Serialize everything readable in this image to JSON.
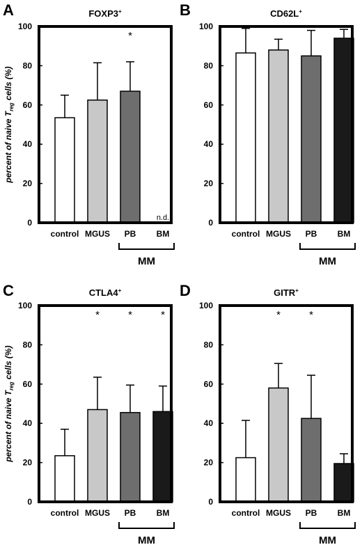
{
  "y_axis_label": "percent of naive T",
  "y_axis_label_sub": "reg",
  "y_axis_label_end": " cells (%)",
  "group_label": "MM",
  "chart_data": [
    {
      "panel": "A",
      "title": "FOXP3",
      "title_sup": "+",
      "type": "bar",
      "categories": [
        "control",
        "MGUS",
        "PB",
        "BM"
      ],
      "values": [
        53.5,
        62.5,
        67.0,
        null
      ],
      "errors": [
        11.5,
        19.0,
        15.0,
        null
      ],
      "annotations": [
        "",
        "",
        "*",
        "n.d."
      ],
      "ylim": [
        0,
        100
      ],
      "yticks": [
        "0",
        "20",
        "40",
        "60",
        "80",
        "100"
      ]
    },
    {
      "panel": "B",
      "title": "CD62L",
      "title_sup": "+",
      "type": "bar",
      "categories": [
        "control",
        "MGUS",
        "PB",
        "BM"
      ],
      "values": [
        86.5,
        88.0,
        85.0,
        94.0
      ],
      "errors": [
        12.5,
        5.5,
        13.0,
        4.5
      ],
      "annotations": [
        "",
        "",
        "",
        ""
      ],
      "ylim": [
        0,
        100
      ],
      "yticks": [
        "0",
        "20",
        "40",
        "60",
        "80",
        "100"
      ]
    },
    {
      "panel": "C",
      "title": "CTLA4",
      "title_sup": "+",
      "type": "bar",
      "categories": [
        "control",
        "MGUS",
        "PB",
        "BM"
      ],
      "values": [
        23.5,
        47.0,
        45.5,
        46.0
      ],
      "errors": [
        13.5,
        16.5,
        14.0,
        13.0
      ],
      "annotations": [
        "",
        "*",
        "*",
        "*"
      ],
      "ylim": [
        0,
        100
      ],
      "yticks": [
        "0",
        "20",
        "40",
        "60",
        "80",
        "100"
      ]
    },
    {
      "panel": "D",
      "title": "GITR",
      "title_sup": "+",
      "type": "bar",
      "categories": [
        "control",
        "MGUS",
        "PB",
        "BM"
      ],
      "values": [
        22.5,
        58.0,
        42.5,
        19.5
      ],
      "errors": [
        19.0,
        12.5,
        22.0,
        5.0
      ],
      "annotations": [
        "",
        "*",
        "*",
        ""
      ],
      "ylim": [
        0,
        100
      ],
      "yticks": [
        "0",
        "20",
        "40",
        "60",
        "80",
        "100"
      ]
    }
  ],
  "bar_colors": [
    "#ffffff",
    "#c8c8c8",
    "#6e6e6e",
    "#1a1a1a"
  ],
  "frame_color": "#000000"
}
